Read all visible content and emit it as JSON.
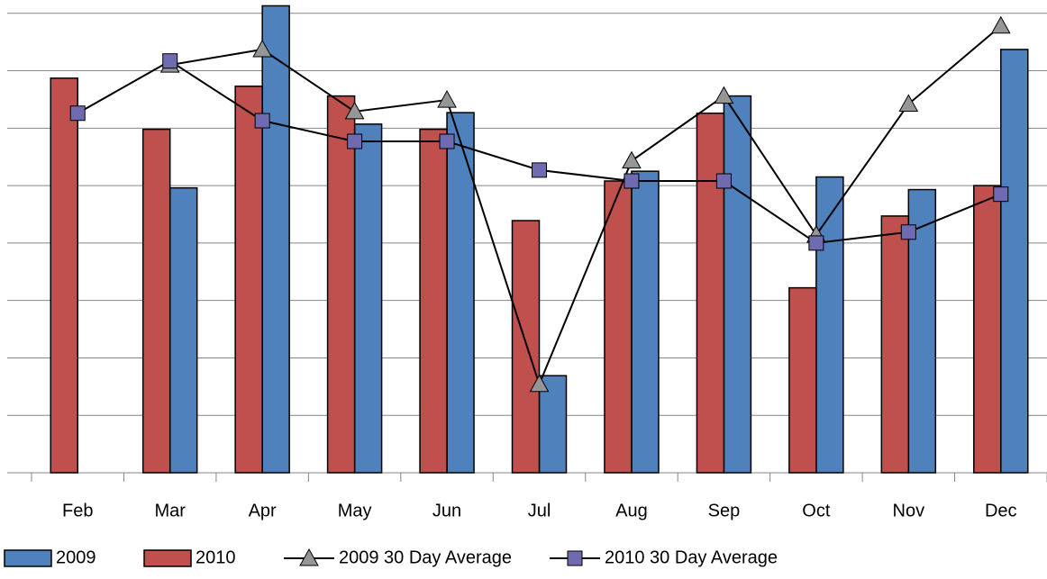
{
  "chart_data": {
    "type": "bar-line",
    "categories": [
      "Feb",
      "Mar",
      "Apr",
      "May",
      "Jun",
      "Jul",
      "Aug",
      "Sep",
      "Oct",
      "Nov",
      "Dec"
    ],
    "series": [
      {
        "name": "2009",
        "kind": "bar",
        "color": "#4f81bd",
        "values": [
          null,
          4.96,
          8.13,
          6.07,
          6.27,
          1.69,
          5.25,
          6.56,
          5.15,
          4.93,
          7.37
        ]
      },
      {
        "name": "2010",
        "kind": "bar",
        "color": "#c0504d",
        "values": [
          6.87,
          5.98,
          6.73,
          6.56,
          5.98,
          4.39,
          5.08,
          6.26,
          3.22,
          4.47,
          5.0
        ]
      },
      {
        "name": "2009 30 Day Average",
        "kind": "line",
        "marker": "triangle",
        "color": "#969696",
        "values": [
          null,
          7.1,
          7.37,
          6.29,
          6.49,
          1.54,
          5.43,
          6.56,
          4.14,
          6.42,
          7.78
        ]
      },
      {
        "name": "2010 30 Day Average",
        "kind": "line",
        "marker": "square",
        "color": "#6f6bb0",
        "values": [
          6.26,
          7.17,
          6.13,
          5.77,
          5.77,
          5.27,
          5.08,
          5.08,
          4.0,
          4.19,
          4.85
        ]
      }
    ],
    "ylim": [
      0,
      8.2
    ],
    "yticks": [
      0,
      1,
      2,
      3,
      4,
      5,
      6,
      7,
      8
    ],
    "grid": true,
    "legend": "bottom"
  }
}
